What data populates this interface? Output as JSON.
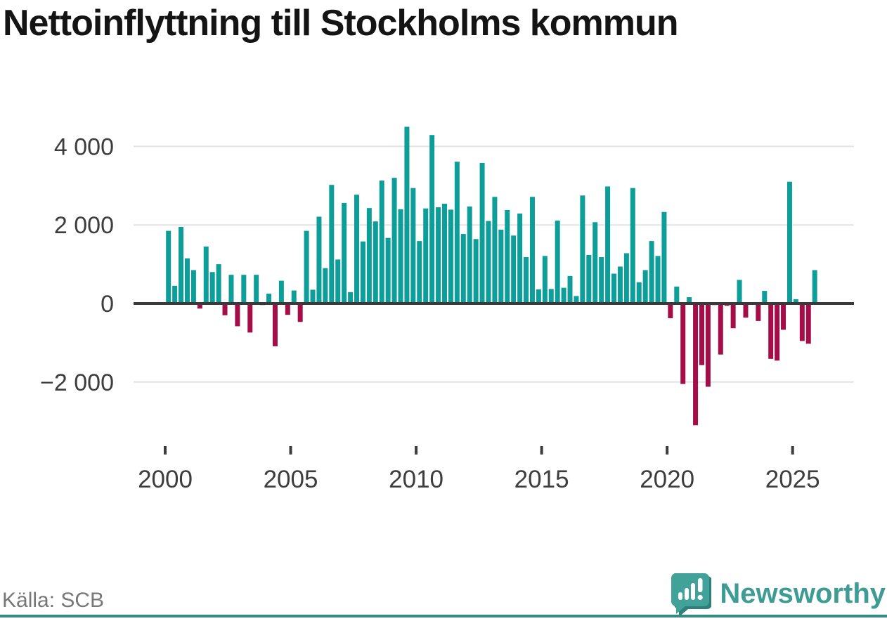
{
  "header": {
    "title": "Nettoinflyttning till Stockholms kommun"
  },
  "footer": {
    "source_label": "Källa: SCB",
    "brand_name": "Newsworthy"
  },
  "colors": {
    "positive_bar": "#0d9e99",
    "negative_bar": "#a50d49",
    "gridline": "#e3e3e3",
    "zero_line": "#3a3a3a",
    "axis_text": "#3d3d3d",
    "title_text": "#141414",
    "source_text": "#777777",
    "brand_teal": "#3e9c95",
    "brand_bubble": "#41a29a",
    "brand_shadow": "#2f7f7a",
    "bottom_strip": "#2f8c86"
  },
  "chart_data": {
    "type": "bar",
    "title": "Nettoinflyttning till Stockholms kommun",
    "xlabel": "",
    "ylabel": "",
    "ylim": [
      -3400,
      4750
    ],
    "grid": "horizontal",
    "legend": "none",
    "y_ticks": [
      {
        "value": 4000,
        "label": "4 000"
      },
      {
        "value": 2000,
        "label": "2 000"
      },
      {
        "value": 0,
        "label": "0"
      },
      {
        "value": -2000,
        "label": "−2 000"
      }
    ],
    "x_ticks": [
      {
        "year": 2000,
        "label": "2000"
      },
      {
        "year": 2005,
        "label": "2005"
      },
      {
        "year": 2010,
        "label": "2010"
      },
      {
        "year": 2015,
        "label": "2015"
      },
      {
        "year": 2020,
        "label": "2020"
      },
      {
        "year": 2025,
        "label": "2025"
      }
    ],
    "frequency": "quarterly",
    "categories": [
      "2000 Q1",
      "2000 Q2",
      "2000 Q3",
      "2000 Q4",
      "2001 Q1",
      "2001 Q2",
      "2001 Q3",
      "2001 Q4",
      "2002 Q1",
      "2002 Q2",
      "2002 Q3",
      "2002 Q4",
      "2003 Q1",
      "2003 Q2",
      "2003 Q3",
      "2003 Q4",
      "2004 Q1",
      "2004 Q2",
      "2004 Q3",
      "2004 Q4",
      "2005 Q1",
      "2005 Q2",
      "2005 Q3",
      "2005 Q4",
      "2006 Q1",
      "2006 Q2",
      "2006 Q3",
      "2006 Q4",
      "2007 Q1",
      "2007 Q2",
      "2007 Q3",
      "2007 Q4",
      "2008 Q1",
      "2008 Q2",
      "2008 Q3",
      "2008 Q4",
      "2009 Q1",
      "2009 Q2",
      "2009 Q3",
      "2009 Q4",
      "2010 Q1",
      "2010 Q2",
      "2010 Q3",
      "2010 Q4",
      "2011 Q1",
      "2011 Q2",
      "2011 Q3",
      "2011 Q4",
      "2012 Q1",
      "2012 Q2",
      "2012 Q3",
      "2012 Q4",
      "2013 Q1",
      "2013 Q2",
      "2013 Q3",
      "2013 Q4",
      "2014 Q1",
      "2014 Q2",
      "2014 Q3",
      "2014 Q4",
      "2015 Q1",
      "2015 Q2",
      "2015 Q3",
      "2015 Q4",
      "2016 Q1",
      "2016 Q2",
      "2016 Q3",
      "2016 Q4",
      "2017 Q1",
      "2017 Q2",
      "2017 Q3",
      "2017 Q4",
      "2018 Q1",
      "2018 Q2",
      "2018 Q3",
      "2018 Q4",
      "2019 Q1",
      "2019 Q2",
      "2019 Q3",
      "2019 Q4",
      "2020 Q1",
      "2020 Q2",
      "2020 Q3",
      "2020 Q4",
      "2021 Q1",
      "2021 Q2",
      "2021 Q3",
      "2021 Q4",
      "2022 Q1",
      "2022 Q2",
      "2022 Q3",
      "2022 Q4",
      "2023 Q1",
      "2023 Q2",
      "2023 Q3",
      "2023 Q4",
      "2024 Q1",
      "2024 Q2",
      "2024 Q3",
      "2024 Q4",
      "2025 Q1",
      "2025 Q2",
      "2025 Q3",
      "2025 Q4"
    ],
    "values": [
      1850,
      450,
      1950,
      1150,
      850,
      -130,
      1450,
      800,
      1000,
      -300,
      730,
      -580,
      730,
      -740,
      730,
      -40,
      250,
      -1090,
      580,
      -290,
      330,
      -470,
      1850,
      350,
      2210,
      900,
      3020,
      1120,
      2560,
      290,
      2770,
      1580,
      2430,
      2090,
      3130,
      1670,
      3200,
      2400,
      4500,
      2940,
      1590,
      2420,
      4290,
      2450,
      2540,
      2390,
      3610,
      1770,
      2470,
      1640,
      3580,
      2100,
      2715,
      1880,
      2380,
      1730,
      2290,
      1180,
      2715,
      360,
      1210,
      370,
      2110,
      400,
      700,
      190,
      2750,
      1235,
      2070,
      1180,
      2980,
      760,
      940,
      1280,
      2940,
      540,
      850,
      1590,
      1210,
      2330,
      -375,
      430,
      -2050,
      160,
      -3100,
      -1570,
      -2120,
      -40,
      -1300,
      -60,
      -630,
      600,
      -360,
      -30,
      -445,
      320,
      -1410,
      -1455,
      -670,
      3100,
      110,
      -955,
      -1025,
      850
    ]
  }
}
